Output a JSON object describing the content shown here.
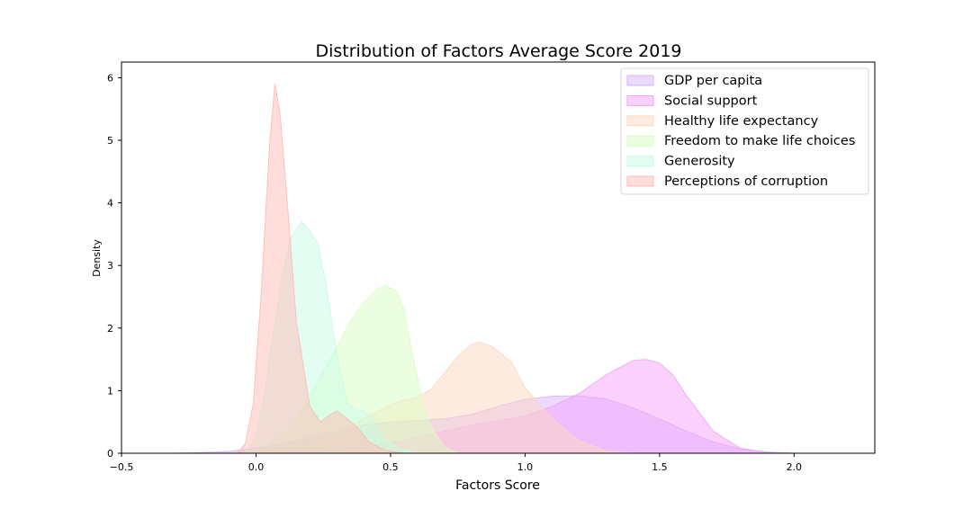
{
  "chart_data": {
    "type": "area",
    "title": "Distribution of Factors Average Score 2019",
    "xlabel": "Factors Score",
    "ylabel": "Density",
    "xlim": [
      -0.5,
      2.3
    ],
    "ylim": [
      0,
      6.25
    ],
    "xticks": [
      -0.5,
      0.0,
      0.5,
      1.0,
      1.5,
      2.0
    ],
    "xtick_labels": [
      "−0.5",
      "0.0",
      "0.5",
      "1.0",
      "1.5",
      "2.0"
    ],
    "yticks": [
      0,
      1,
      2,
      3,
      4,
      5,
      6
    ],
    "ytick_labels": [
      "0",
      "1",
      "2",
      "3",
      "4",
      "5",
      "6"
    ],
    "grid": false,
    "legend_position": "top-right",
    "series": [
      {
        "name": "GDP per capita",
        "color": "#d8b4fe",
        "points": [
          [
            -0.3,
            0
          ],
          [
            -0.2,
            0.01
          ],
          [
            -0.1,
            0.03
          ],
          [
            0.0,
            0.08
          ],
          [
            0.1,
            0.15
          ],
          [
            0.2,
            0.25
          ],
          [
            0.3,
            0.35
          ],
          [
            0.4,
            0.45
          ],
          [
            0.5,
            0.5
          ],
          [
            0.6,
            0.52
          ],
          [
            0.7,
            0.55
          ],
          [
            0.8,
            0.62
          ],
          [
            0.9,
            0.75
          ],
          [
            1.0,
            0.86
          ],
          [
            1.1,
            0.91
          ],
          [
            1.2,
            0.92
          ],
          [
            1.3,
            0.87
          ],
          [
            1.4,
            0.73
          ],
          [
            1.5,
            0.55
          ],
          [
            1.6,
            0.35
          ],
          [
            1.7,
            0.18
          ],
          [
            1.8,
            0.07
          ],
          [
            1.9,
            0.02
          ],
          [
            2.0,
            0
          ]
        ]
      },
      {
        "name": "Social support",
        "color": "#f5a3fb",
        "points": [
          [
            0.0,
            0
          ],
          [
            0.1,
            0.01
          ],
          [
            0.2,
            0.03
          ],
          [
            0.3,
            0.06
          ],
          [
            0.4,
            0.1
          ],
          [
            0.5,
            0.16
          ],
          [
            0.6,
            0.25
          ],
          [
            0.7,
            0.35
          ],
          [
            0.8,
            0.45
          ],
          [
            0.9,
            0.52
          ],
          [
            1.0,
            0.6
          ],
          [
            1.1,
            0.75
          ],
          [
            1.2,
            0.95
          ],
          [
            1.3,
            1.25
          ],
          [
            1.4,
            1.48
          ],
          [
            1.45,
            1.5
          ],
          [
            1.5,
            1.44
          ],
          [
            1.55,
            1.25
          ],
          [
            1.6,
            0.92
          ],
          [
            1.7,
            0.35
          ],
          [
            1.8,
            0.08
          ],
          [
            1.9,
            0.01
          ],
          [
            2.0,
            0
          ]
        ]
      },
      {
        "name": "Healthy life expectancy",
        "color": "#fdd8bf",
        "points": [
          [
            -0.05,
            0
          ],
          [
            0.0,
            0.03
          ],
          [
            0.1,
            0.1
          ],
          [
            0.2,
            0.2
          ],
          [
            0.3,
            0.35
          ],
          [
            0.4,
            0.55
          ],
          [
            0.5,
            0.78
          ],
          [
            0.55,
            0.85
          ],
          [
            0.6,
            0.9
          ],
          [
            0.65,
            1.02
          ],
          [
            0.7,
            1.28
          ],
          [
            0.75,
            1.55
          ],
          [
            0.8,
            1.73
          ],
          [
            0.83,
            1.78
          ],
          [
            0.88,
            1.7
          ],
          [
            0.95,
            1.45
          ],
          [
            1.0,
            1.05
          ],
          [
            1.1,
            0.55
          ],
          [
            1.2,
            0.2
          ],
          [
            1.3,
            0.04
          ],
          [
            1.4,
            0
          ]
        ]
      },
      {
        "name": "Freedom to make life choices",
        "color": "#d9fdc2",
        "points": [
          [
            -0.05,
            0
          ],
          [
            0.0,
            0.05
          ],
          [
            0.05,
            0.15
          ],
          [
            0.1,
            0.3
          ],
          [
            0.15,
            0.55
          ],
          [
            0.2,
            0.9
          ],
          [
            0.25,
            1.3
          ],
          [
            0.3,
            1.7
          ],
          [
            0.35,
            2.1
          ],
          [
            0.4,
            2.4
          ],
          [
            0.45,
            2.62
          ],
          [
            0.48,
            2.68
          ],
          [
            0.52,
            2.6
          ],
          [
            0.55,
            2.3
          ],
          [
            0.58,
            1.6
          ],
          [
            0.62,
            0.8
          ],
          [
            0.66,
            0.35
          ],
          [
            0.7,
            0.1
          ],
          [
            0.75,
            0
          ]
        ]
      },
      {
        "name": "Generosity",
        "color": "#c8fce6",
        "points": [
          [
            -0.05,
            0
          ],
          [
            -0.02,
            0.1
          ],
          [
            0.0,
            0.3
          ],
          [
            0.03,
            0.9
          ],
          [
            0.06,
            1.8
          ],
          [
            0.1,
            2.9
          ],
          [
            0.13,
            3.45
          ],
          [
            0.17,
            3.7
          ],
          [
            0.2,
            3.55
          ],
          [
            0.23,
            3.35
          ],
          [
            0.26,
            2.7
          ],
          [
            0.3,
            1.6
          ],
          [
            0.34,
            0.8
          ],
          [
            0.37,
            0.7
          ],
          [
            0.4,
            0.68
          ],
          [
            0.44,
            0.5
          ],
          [
            0.48,
            0.2
          ],
          [
            0.55,
            0.05
          ],
          [
            0.6,
            0
          ]
        ]
      },
      {
        "name": "Perceptions of corruption",
        "color": "#fdbbb6",
        "points": [
          [
            -0.07,
            0
          ],
          [
            -0.04,
            0.15
          ],
          [
            -0.01,
            0.8
          ],
          [
            0.02,
            2.6
          ],
          [
            0.05,
            4.9
          ],
          [
            0.07,
            5.9
          ],
          [
            0.09,
            5.4
          ],
          [
            0.12,
            3.8
          ],
          [
            0.15,
            2.1
          ],
          [
            0.2,
            0.75
          ],
          [
            0.24,
            0.5
          ],
          [
            0.27,
            0.6
          ],
          [
            0.3,
            0.68
          ],
          [
            0.34,
            0.55
          ],
          [
            0.38,
            0.4
          ],
          [
            0.42,
            0.18
          ],
          [
            0.48,
            0.05
          ],
          [
            0.55,
            0
          ]
        ]
      }
    ]
  }
}
